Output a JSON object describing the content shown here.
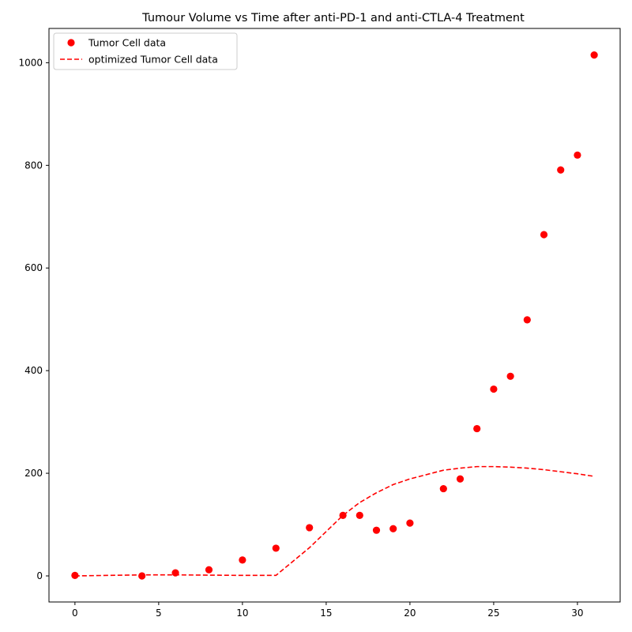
{
  "chart_data": {
    "type": "scatter",
    "title": "Tumour Volume vs Time after anti-PD-1 and anti-CTLA-4 Treatment",
    "xlabel": "",
    "ylabel": "",
    "xlim": [
      -1.55,
      32.55
    ],
    "ylim": [
      -50.8,
      1066.8
    ],
    "xticks": [
      0,
      5,
      10,
      15,
      20,
      25,
      30
    ],
    "yticks": [
      0,
      200,
      400,
      600,
      800,
      1000
    ],
    "grid": false,
    "legend_position": "upper-left",
    "series": [
      {
        "name": "Tumor Cell data",
        "kind": "scatter",
        "marker": "circle",
        "color": "#ff0000",
        "x": [
          0,
          4,
          6,
          8,
          10,
          12,
          14,
          16,
          17,
          18,
          19,
          20,
          22,
          23,
          24,
          25,
          26,
          27,
          28,
          29,
          30,
          31
        ],
        "y": [
          1,
          0,
          6,
          12,
          31,
          54,
          94,
          118,
          118,
          89,
          92,
          103,
          170,
          189,
          287,
          364,
          389,
          499,
          665,
          791,
          820,
          1015
        ]
      },
      {
        "name": "optimized Tumor Cell data",
        "kind": "line",
        "dash": "dashed",
        "color": "#ff0000",
        "x": [
          0,
          4,
          6,
          8,
          10,
          12,
          14,
          16,
          17,
          18,
          19,
          20,
          22,
          23,
          24,
          25,
          26,
          27,
          28,
          29,
          30,
          31
        ],
        "y": [
          0,
          2,
          2,
          1.5,
          1,
          1,
          55,
          118,
          143,
          162,
          178,
          189,
          206,
          210,
          213,
          213,
          212,
          210,
          207,
          203,
          199,
          194
        ]
      }
    ]
  }
}
